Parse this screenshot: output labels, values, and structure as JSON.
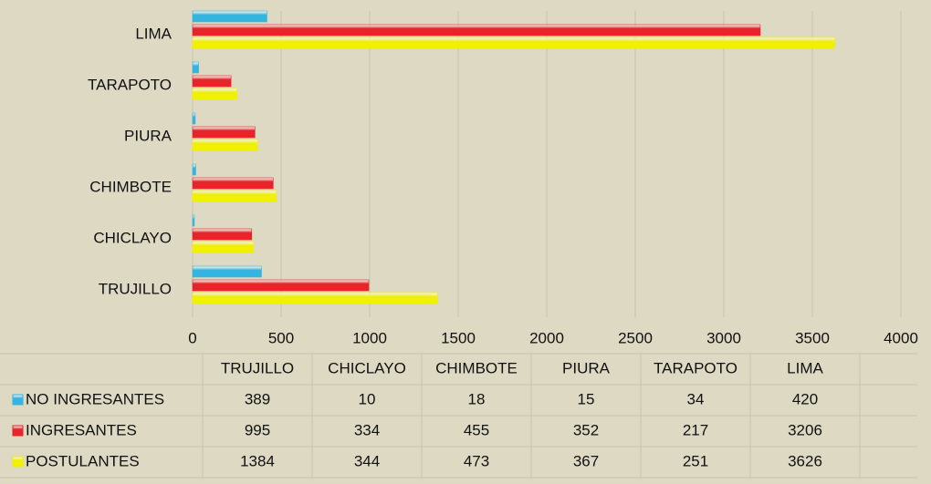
{
  "chart_data": {
    "type": "bar",
    "orientation": "horizontal",
    "categories": [
      "TRUJILLO",
      "CHICLAYO",
      "CHIMBOTE",
      "PIURA",
      "TARAPOTO",
      "LIMA"
    ],
    "series": [
      {
        "name": "NO INGRESANTES",
        "color": "#36b4e0",
        "values": [
          389,
          10,
          18,
          15,
          34,
          420
        ]
      },
      {
        "name": "INGRESANTES",
        "color": "#e8232a",
        "values": [
          995,
          334,
          455,
          352,
          217,
          3206
        ]
      },
      {
        "name": "POSTULANTES",
        "color": "#f0f000",
        "values": [
          1384,
          344,
          473,
          367,
          251,
          3626
        ]
      }
    ],
    "xlim": [
      0,
      4000
    ],
    "xticks": [
      0,
      500,
      1000,
      1500,
      2000,
      2500,
      3000,
      3500,
      4000
    ],
    "grid": true,
    "data_table": true
  }
}
